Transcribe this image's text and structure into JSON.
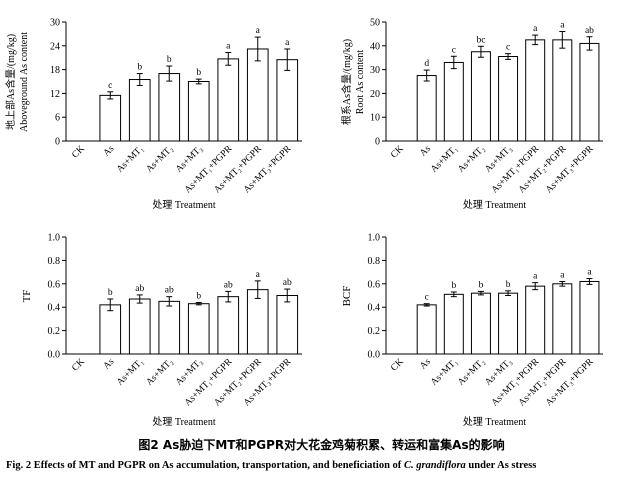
{
  "figure": {
    "caption_cn": "图2 As胁迫下MT和PGPR对大花金鸡菊积累、转运和富集As的影响",
    "caption_en_prefix": "Fig. 2 Effects of MT and PGPR on As accumulation, transportation, and beneficiation of ",
    "caption_en_species": "C. grandiflora",
    "caption_en_suffix": " under As stress"
  },
  "colors": {
    "bar_fill": "#ffffff",
    "bar_stroke": "#000000",
    "axis": "#000000"
  },
  "chart_data": [
    {
      "type": "bar",
      "xlabel": "处理 Treatment",
      "ylabel_cn": "地上部As含量/(mg/kg)",
      "ylabel_en": "Aboveground As content",
      "ylim": [
        0,
        30
      ],
      "yticks": [
        0,
        6,
        12,
        18,
        24,
        30
      ],
      "categories": [
        "CK",
        "As",
        "As+MT₁",
        "As+MT₂",
        "As+MT₃",
        "As+MT₁+PGPR",
        "As+MT₂+PGPR",
        "As+MT₃+PGPR"
      ],
      "values": [
        null,
        11.5,
        15.5,
        17.0,
        15.0,
        20.7,
        23.2,
        20.5
      ],
      "errors": [
        null,
        0.9,
        1.5,
        1.9,
        0.6,
        1.6,
        3.0,
        2.7
      ],
      "sig_letters": [
        "",
        "c",
        "b",
        "b",
        "b",
        "a",
        "a",
        "a"
      ],
      "grid": false
    },
    {
      "type": "bar",
      "xlabel": "处理 Treatment",
      "ylabel_cn": "根系As含量/(mg/kg)",
      "ylabel_en": "Root As content",
      "ylim": [
        0,
        50
      ],
      "yticks": [
        0,
        10,
        20,
        30,
        40,
        50
      ],
      "categories": [
        "CK",
        "As",
        "As+MT₁",
        "As+MT₂",
        "As+MT₃",
        "As+MT₁+PGPR",
        "As+MT₂+PGPR",
        "As+MT₃+PGPR"
      ],
      "values": [
        null,
        27.5,
        33.0,
        37.5,
        35.5,
        42.5,
        42.5,
        41.0
      ],
      "errors": [
        null,
        2.3,
        2.6,
        2.3,
        1.2,
        2.0,
        3.5,
        2.8
      ],
      "sig_letters": [
        "",
        "d",
        "c",
        "bc",
        "c",
        "a",
        "a",
        "ab"
      ],
      "grid": false
    },
    {
      "type": "bar",
      "xlabel": "处理 Treatment",
      "ylabel": "TF",
      "ylim": [
        0,
        1.0
      ],
      "yticks": [
        0.0,
        0.2,
        0.4,
        0.6,
        0.8,
        1.0
      ],
      "categories": [
        "CK",
        "As",
        "As+MT₁",
        "As+MT₂",
        "As+MT₃",
        "As+MT₁+PGPR",
        "As+MT₂+PGPR",
        "As+MT₃+PGPR"
      ],
      "values": [
        null,
        0.42,
        0.47,
        0.45,
        0.43,
        0.49,
        0.55,
        0.5
      ],
      "errors": [
        null,
        0.05,
        0.035,
        0.04,
        0.01,
        0.045,
        0.075,
        0.055
      ],
      "sig_letters": [
        "",
        "b",
        "ab",
        "ab",
        "b",
        "ab",
        "a",
        "ab"
      ],
      "grid": false
    },
    {
      "type": "bar",
      "xlabel": "处理 Treatment",
      "ylabel": "BCF",
      "ylim": [
        0,
        1.0
      ],
      "yticks": [
        0.0,
        0.2,
        0.4,
        0.6,
        0.8,
        1.0
      ],
      "categories": [
        "CK",
        "As",
        "As+MT₁",
        "As+MT₂",
        "As+MT₃",
        "As+MT₁+PGPR",
        "As+MT₂+PGPR",
        "As+MT₃+PGPR"
      ],
      "values": [
        null,
        0.42,
        0.51,
        0.52,
        0.52,
        0.58,
        0.6,
        0.62
      ],
      "errors": [
        null,
        0.01,
        0.02,
        0.015,
        0.02,
        0.03,
        0.02,
        0.025
      ],
      "sig_letters": [
        "",
        "c",
        "b",
        "b",
        "b",
        "a",
        "a",
        "a"
      ],
      "grid": false
    }
  ]
}
